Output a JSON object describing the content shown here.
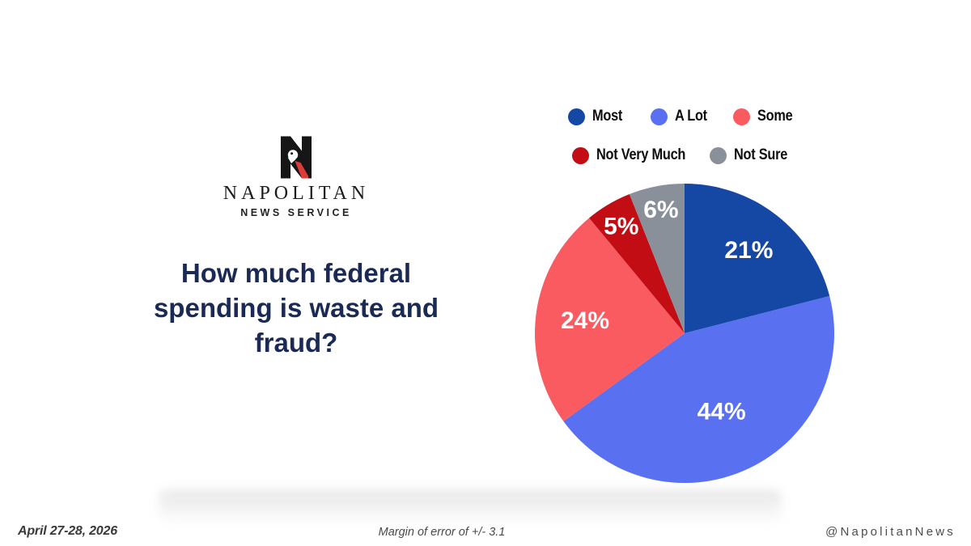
{
  "brand": {
    "wordmark": "NAPOLITAN",
    "tagline": "NEWS SERVICE",
    "logo_icon": "napolitan-eagle-n-monogram",
    "logo_colors": {
      "black": "#161616",
      "red": "#dd3b37"
    }
  },
  "title_lines": [
    "How much federal",
    "spending is waste and",
    "fraud?"
  ],
  "chart_data": {
    "type": "pie",
    "title": "How much federal spending is waste and fraud?",
    "categories": [
      "Most",
      "A Lot",
      "Some",
      "Not Very Much",
      "Not Sure"
    ],
    "values": [
      21,
      44,
      24,
      5,
      6
    ],
    "labels": [
      "21%",
      "44%",
      "24%",
      "5%",
      "6%"
    ],
    "colors": [
      "#1548A4",
      "#5970F1",
      "#F95B60",
      "#C10D13",
      "#8A909A"
    ],
    "start_angle_deg": 0,
    "direction": "clockwise",
    "legend_position": "top",
    "label_color": "#ffffff"
  },
  "footer": {
    "date": "April 27-28, 2026",
    "note": "Margin of error of +/- 3.1",
    "handle": "@NapolitanNews"
  }
}
